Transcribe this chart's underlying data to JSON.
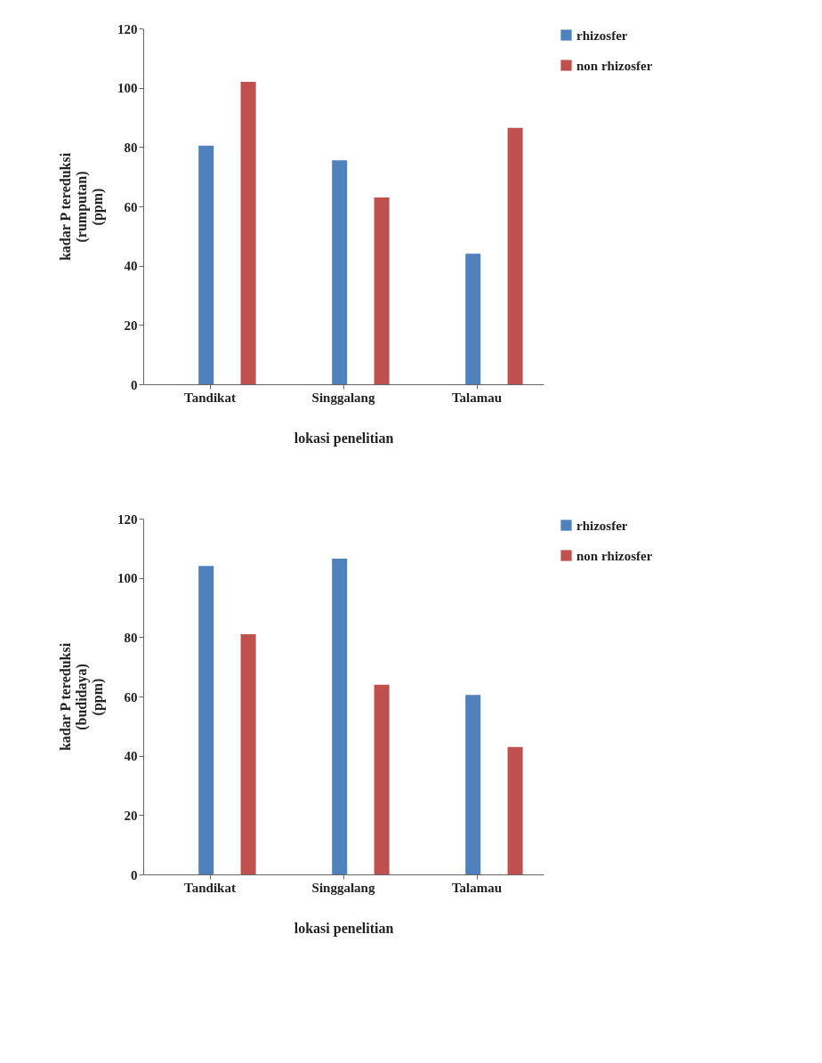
{
  "chart_data": [
    {
      "type": "bar",
      "categories": [
        "Tandikat",
        "Singgalang",
        "Talamau"
      ],
      "xlabel": "lokasi penelitian",
      "ylabel": "kadar P tereduksi\n(rumputan)\n(ppm)",
      "ylim": [
        0,
        120
      ],
      "yticks": [
        0,
        20,
        40,
        60,
        80,
        100,
        120
      ],
      "grid": false,
      "legend": "right",
      "series": [
        {
          "name": "rhizosfer",
          "color": "#4f81bd",
          "values": [
            80.5,
            75.5,
            44
          ]
        },
        {
          "name": "non rhizosfer",
          "color": "#c0504d",
          "values": [
            102,
            63,
            86.5
          ]
        }
      ]
    },
    {
      "type": "bar",
      "categories": [
        "Tandikat",
        "Singgalang",
        "Talamau"
      ],
      "xlabel": "lokasi penelitian",
      "ylabel": "kadar P tereduksi\n(budidaya)\n(ppm)",
      "ylim": [
        0,
        120
      ],
      "yticks": [
        0,
        20,
        40,
        60,
        80,
        100,
        120
      ],
      "grid": false,
      "legend": "right",
      "series": [
        {
          "name": "rhizosfer",
          "color": "#4f81bd",
          "values": [
            104,
            106.5,
            60.5
          ]
        },
        {
          "name": "non rhizosfer",
          "color": "#c0504d",
          "values": [
            81,
            64,
            43
          ]
        }
      ]
    }
  ]
}
